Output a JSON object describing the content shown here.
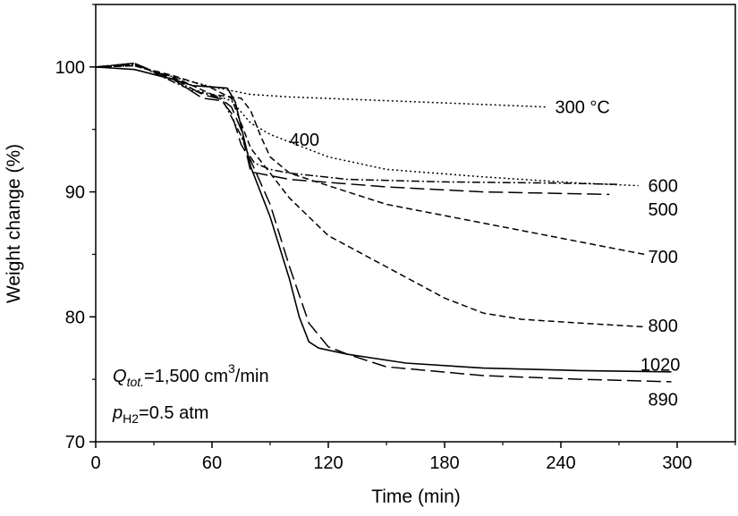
{
  "chart_data": {
    "type": "line",
    "title": "",
    "xlabel": "Time (min)",
    "ylabel": "Weight change (%)",
    "xlim": [
      0,
      330
    ],
    "ylim": [
      70,
      105
    ],
    "xticks": [
      0,
      60,
      120,
      180,
      240,
      300
    ],
    "yticks": [
      70,
      80,
      90,
      100
    ],
    "grid": false,
    "legend": "none",
    "annotation": {
      "q_text": "Q",
      "q_sub": "tot.",
      "q_rest": "=1,500 cm",
      "q_sup": "3",
      "q_unit": "/min",
      "p_text": "p",
      "p_sub": "H2",
      "p_rest": "=0.5 atm"
    },
    "series": [
      {
        "label": "300 °C",
        "dash": "dot",
        "x": [
          0,
          20,
          40,
          50,
          60,
          70,
          80,
          100,
          150,
          200,
          232
        ],
        "y": [
          100,
          100.1,
          99.2,
          98.8,
          98.4,
          98.1,
          97.8,
          97.6,
          97.3,
          97.0,
          96.8
        ]
      },
      {
        "label": "400",
        "dash": "dot",
        "x": [
          0,
          20,
          40,
          50,
          60,
          70,
          80,
          90,
          100,
          120,
          150,
          200,
          250,
          280
        ],
        "y": [
          100,
          100.2,
          99,
          98.2,
          97.8,
          97.3,
          95.5,
          94.6,
          94.0,
          92.8,
          91.8,
          91.2,
          90.7,
          90.5
        ]
      },
      {
        "label": "500",
        "dash": "longdash",
        "x": [
          0,
          20,
          40,
          55,
          65,
          70,
          75,
          80,
          100,
          150,
          200,
          265
        ],
        "y": [
          100,
          100.2,
          99.1,
          97.8,
          97.4,
          96.8,
          95.0,
          91.6,
          91.0,
          90.4,
          90.0,
          89.8
        ]
      },
      {
        "label": "600",
        "dash": "dashdot",
        "x": [
          0,
          20,
          40,
          50,
          58,
          65,
          70,
          75,
          78,
          82,
          90,
          100,
          130,
          180,
          240,
          270
        ],
        "y": [
          100,
          100.3,
          98.8,
          98.1,
          97.8,
          97.5,
          96.0,
          94.5,
          93.2,
          92.3,
          91.8,
          91.5,
          91.0,
          90.8,
          90.7,
          90.6
        ]
      },
      {
        "label": "700",
        "dash": "dash",
        "x": [
          0,
          20,
          40,
          60,
          75,
          80,
          85,
          90,
          100,
          120,
          150,
          200,
          250,
          283
        ],
        "y": [
          100,
          100.1,
          99.2,
          97.8,
          97.5,
          96.5,
          94.5,
          92.8,
          91.5,
          90.5,
          89.0,
          87.5,
          86.0,
          85.0
        ]
      },
      {
        "label": "800",
        "dash": "dash",
        "x": [
          0,
          20,
          40,
          60,
          70,
          80,
          90,
          100,
          120,
          150,
          180,
          200,
          220,
          250,
          283
        ],
        "y": [
          100,
          100.1,
          99.3,
          98.3,
          97.5,
          93.5,
          91.5,
          89.5,
          86.5,
          84.0,
          81.5,
          80.3,
          79.8,
          79.5,
          79.2
        ]
      },
      {
        "label": "890",
        "dash": "longdash",
        "x": [
          0,
          20,
          40,
          55,
          65,
          70,
          75,
          80,
          90,
          100,
          110,
          120,
          130,
          150,
          200,
          250,
          297
        ],
        "y": [
          100,
          100.3,
          99.0,
          97.5,
          97.3,
          96.3,
          93.8,
          92.5,
          89.0,
          84.0,
          79.5,
          77.6,
          77.0,
          76.0,
          75.3,
          75.0,
          74.8
        ]
      },
      {
        "label": "1020",
        "dash": "solid",
        "x": [
          0,
          20,
          40,
          50,
          60,
          68,
          72,
          80,
          90,
          100,
          105,
          110,
          115,
          130,
          160,
          200,
          250,
          297
        ],
        "y": [
          100,
          99.8,
          99.0,
          98.5,
          98.4,
          98.3,
          97.2,
          92.0,
          88.0,
          83.0,
          80.0,
          78.0,
          77.5,
          77.0,
          76.3,
          75.9,
          75.7,
          75.6
        ]
      }
    ],
    "labels": [
      {
        "text": "300 °C",
        "x": 237,
        "y": 96.8
      },
      {
        "text": "400",
        "x": 100,
        "y": 94.2
      },
      {
        "text": "600",
        "x": 285,
        "y": 90.5
      },
      {
        "text": "500",
        "x": 285,
        "y": 88.6
      },
      {
        "text": "700",
        "x": 285,
        "y": 84.8
      },
      {
        "text": "800",
        "x": 285,
        "y": 79.3
      },
      {
        "text": "1020",
        "x": 281,
        "y": 76.2
      },
      {
        "text": "890",
        "x": 285,
        "y": 73.4
      }
    ]
  }
}
